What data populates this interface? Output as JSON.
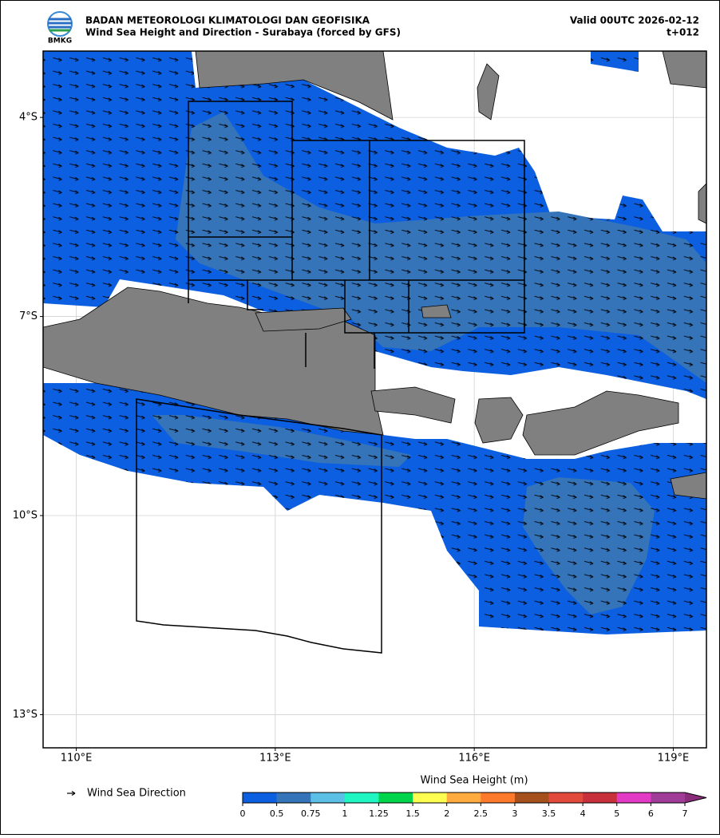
{
  "header": {
    "agency": "BADAN METEOROLOGI KLIMATOLOGI DAN GEOFISIKA",
    "title": "Wind Sea Height and Direction - Surabaya (forced by GFS)",
    "valid": "Valid 00UTC 2026-02-12",
    "lead": "t+012",
    "logo_text": "BMKG"
  },
  "map": {
    "xlim": [
      109.5,
      119.5
    ],
    "ylim": [
      -3,
      -13.5
    ],
    "xticks": [
      {
        "value": 110,
        "label": "110°E"
      },
      {
        "value": 113,
        "label": "113°E"
      },
      {
        "value": 116,
        "label": "116°E"
      },
      {
        "value": 119,
        "label": "119°E"
      }
    ],
    "yticks": [
      {
        "value": -4,
        "label": "4°S"
      },
      {
        "value": -7,
        "label": "7°S"
      },
      {
        "value": -10,
        "label": "10°S"
      },
      {
        "value": -13,
        "label": "13°S"
      }
    ],
    "grid": true
  },
  "legend": {
    "arrow_label": "Wind Sea Direction"
  },
  "colorbar": {
    "title": "Wind Sea Height (m)",
    "ticks": [
      0,
      0.5,
      0.75,
      1,
      1.25,
      1.5,
      2,
      2.5,
      3,
      3.5,
      4,
      5,
      6,
      7
    ],
    "colors": [
      "#0b5fe0",
      "#3574b9",
      "#5cbfe6",
      "#1ff6c2",
      "#00d44a",
      "#fefe50",
      "#ffab3f",
      "#fd7a2d",
      "#a6501e",
      "#e24a3b",
      "#c8303b",
      "#e23ac5",
      "#a03c97"
    ],
    "extend_color": "#8b2c7a"
  }
}
